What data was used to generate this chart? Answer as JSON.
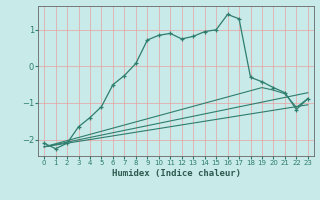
{
  "xlabel": "Humidex (Indice chaleur)",
  "ylabel": "",
  "bg_color": "#c8eae8",
  "grid_color": "#e8a0a0",
  "line_color": "#2e7d6e",
  "xlim": [
    -0.5,
    23.5
  ],
  "ylim": [
    -2.45,
    1.65
  ],
  "yticks": [
    -2,
    -1,
    0,
    1
  ],
  "xticks": [
    0,
    1,
    2,
    3,
    4,
    5,
    6,
    7,
    8,
    9,
    10,
    11,
    12,
    13,
    14,
    15,
    16,
    17,
    18,
    19,
    20,
    21,
    22,
    23
  ],
  "line1_x": [
    0,
    1,
    2,
    3,
    4,
    5,
    6,
    7,
    8,
    9,
    10,
    11,
    12,
    13,
    14,
    15,
    16,
    17,
    18,
    19,
    20,
    21,
    22,
    23
  ],
  "line1_y": [
    -2.1,
    -2.25,
    -2.1,
    -1.65,
    -1.4,
    -1.1,
    -0.5,
    -0.25,
    0.08,
    0.72,
    0.85,
    0.9,
    0.75,
    0.82,
    0.95,
    1.0,
    1.42,
    1.3,
    -0.3,
    -0.42,
    -0.58,
    -0.72,
    -1.18,
    -0.88
  ],
  "line2_x": [
    0,
    23
  ],
  "line2_y": [
    -2.2,
    -0.72
  ],
  "line3_x": [
    0,
    23
  ],
  "line3_y": [
    -2.2,
    -1.05
  ],
  "line4_x": [
    0,
    19,
    20,
    21,
    22,
    23
  ],
  "line4_y": [
    -2.2,
    -0.58,
    -0.65,
    -0.75,
    -1.12,
    -0.88
  ]
}
